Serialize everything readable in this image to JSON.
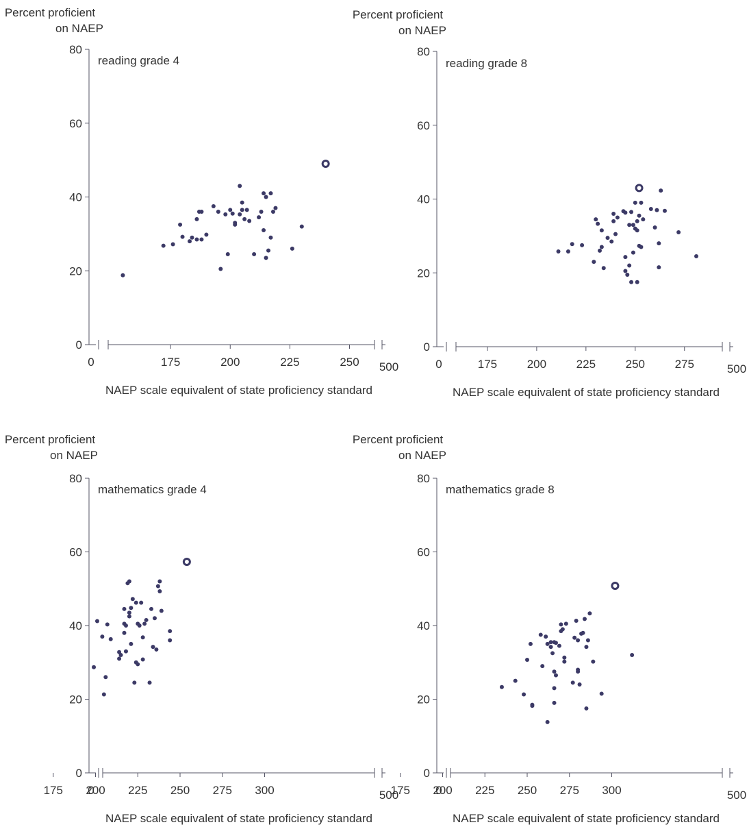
{
  "colors": {
    "point": "#3c3a66",
    "highlight": "#3c3a66",
    "axis": "#555566",
    "text": "#333333"
  },
  "chart_data": [
    {
      "type": "scatter",
      "title": "reading grade 4",
      "ylabel": [
        "Percent proficient",
        "on NAEP"
      ],
      "xlabel": "NAEP scale equivalent of state proficiency standard",
      "ylim": [
        0,
        80
      ],
      "yticks": [
        0,
        20,
        40,
        60,
        80
      ],
      "xrange": [
        150,
        250
      ],
      "xticks": [
        "175",
        "200",
        "225",
        "250"
      ],
      "x_zero_label": "0",
      "x_max_label": "500",
      "highlight": {
        "x": 240,
        "y": 49
      },
      "points": [
        [
          155,
          18.8
        ],
        [
          172,
          26.8
        ],
        [
          176,
          27.2
        ],
        [
          179,
          32.5
        ],
        [
          180,
          29.2
        ],
        [
          183,
          28
        ],
        [
          184,
          29
        ],
        [
          186,
          28.5
        ],
        [
          186,
          34
        ],
        [
          187,
          36
        ],
        [
          188,
          28.5
        ],
        [
          188,
          36
        ],
        [
          190,
          29.8
        ],
        [
          193,
          37.5
        ],
        [
          195,
          36
        ],
        [
          196,
          20.5
        ],
        [
          198,
          35.3
        ],
        [
          199,
          24.5
        ],
        [
          200,
          36.5
        ],
        [
          201,
          35.5
        ],
        [
          202,
          33
        ],
        [
          202,
          32.5
        ],
        [
          204,
          43
        ],
        [
          204,
          35.3
        ],
        [
          205,
          38.5
        ],
        [
          205,
          36.5
        ],
        [
          206,
          34
        ],
        [
          207,
          36.5
        ],
        [
          208,
          33.5
        ],
        [
          210,
          24.5
        ],
        [
          212,
          34.5
        ],
        [
          213,
          36
        ],
        [
          214,
          31
        ],
        [
          214,
          41
        ],
        [
          215,
          40
        ],
        [
          215,
          23.5
        ],
        [
          216,
          25.5
        ],
        [
          217,
          29
        ],
        [
          217,
          41
        ],
        [
          218,
          36
        ],
        [
          219,
          37
        ],
        [
          226,
          26
        ],
        [
          230,
          32
        ]
      ]
    },
    {
      "type": "scatter",
      "title": "reading grade 8",
      "ylabel": [
        "Percent proficient",
        "on NAEP"
      ],
      "xlabel": "NAEP scale equivalent of state proficiency standard",
      "ylim": [
        0,
        80
      ],
      "yticks": [
        0,
        20,
        40,
        60,
        80
      ],
      "xrange": [
        150,
        300
      ],
      "xticks": [
        "175",
        "200",
        "225",
        "250",
        "275"
      ],
      "x_zero_label": "0",
      "x_max_label": "500",
      "highlight": {
        "x": 252,
        "y": 43
      },
      "points": [
        [
          211,
          25.8
        ],
        [
          216,
          25.8
        ],
        [
          218,
          27.8
        ],
        [
          223,
          27.5
        ],
        [
          229,
          23
        ],
        [
          230,
          34.5
        ],
        [
          231,
          33.3
        ],
        [
          232,
          26
        ],
        [
          233,
          27
        ],
        [
          233,
          31.5
        ],
        [
          234,
          21.3
        ],
        [
          236,
          29.5
        ],
        [
          238,
          28.5
        ],
        [
          239,
          34
        ],
        [
          239,
          36
        ],
        [
          240,
          30.5
        ],
        [
          241,
          35
        ],
        [
          244,
          36.7
        ],
        [
          245,
          20.5
        ],
        [
          245,
          24.3
        ],
        [
          245,
          36.3
        ],
        [
          246,
          19.5
        ],
        [
          247,
          33
        ],
        [
          247,
          22
        ],
        [
          248,
          17.5
        ],
        [
          248,
          36.5
        ],
        [
          249,
          25.5
        ],
        [
          249,
          33
        ],
        [
          250,
          32
        ],
        [
          250,
          39
        ],
        [
          251,
          31.5
        ],
        [
          251,
          34
        ],
        [
          251,
          17.5
        ],
        [
          252,
          27.3
        ],
        [
          252,
          35.5
        ],
        [
          253,
          39
        ],
        [
          253,
          27
        ],
        [
          254,
          34.5
        ],
        [
          258,
          37.3
        ],
        [
          260,
          32.3
        ],
        [
          261,
          37
        ],
        [
          262,
          21.5
        ],
        [
          262,
          28
        ],
        [
          263,
          42.3
        ],
        [
          265,
          36.8
        ],
        [
          272,
          31
        ],
        [
          281,
          24.5
        ]
      ]
    },
    {
      "type": "scatter",
      "title": "mathematics grade 4",
      "ylabel": [
        "Percent proficient",
        "on NAEP"
      ],
      "xlabel": "NAEP scale equivalent of state proficiency standard",
      "ylim": [
        0,
        80
      ],
      "yticks": [
        0,
        20,
        40,
        60,
        80
      ],
      "xrange": [
        150,
        325
      ],
      "xticks": [
        "175",
        "200",
        "225",
        "250",
        "275",
        "300"
      ],
      "x_zero_label": "0",
      "x_max_label": "500",
      "highlight": {
        "x": 254,
        "y": 57.3
      },
      "points": [
        [
          199,
          28.7
        ],
        [
          201,
          41.2
        ],
        [
          204,
          37
        ],
        [
          205,
          21.3
        ],
        [
          206,
          26
        ],
        [
          207,
          40.3
        ],
        [
          209,
          36.3
        ],
        [
          214,
          32.8
        ],
        [
          214,
          31
        ],
        [
          215,
          32
        ],
        [
          217,
          44.5
        ],
        [
          217,
          40.5
        ],
        [
          217,
          38
        ],
        [
          218,
          40
        ],
        [
          218,
          33
        ],
        [
          219,
          51.5
        ],
        [
          220,
          52
        ],
        [
          220,
          43.5
        ],
        [
          220,
          42.5
        ],
        [
          221,
          35
        ],
        [
          221,
          44.8
        ],
        [
          222,
          47.2
        ],
        [
          223,
          24.5
        ],
        [
          224,
          30
        ],
        [
          224,
          46.2
        ],
        [
          225,
          40.5
        ],
        [
          225,
          29.5
        ],
        [
          226,
          40
        ],
        [
          227,
          46.2
        ],
        [
          228,
          36.8
        ],
        [
          228,
          30.8
        ],
        [
          229,
          40.5
        ],
        [
          230,
          41.5
        ],
        [
          232,
          24.5
        ],
        [
          233,
          44.5
        ],
        [
          234,
          34.2
        ],
        [
          235,
          42
        ],
        [
          236,
          33.5
        ],
        [
          237,
          50.7
        ],
        [
          238,
          52
        ],
        [
          238,
          49.3
        ],
        [
          239,
          44
        ],
        [
          244,
          36
        ],
        [
          244,
          38.5
        ]
      ]
    },
    {
      "type": "scatter",
      "title": "mathematics grade 8",
      "ylabel": [
        "Percent proficient",
        "on NAEP"
      ],
      "xlabel": "NAEP scale equivalent of state proficiency standard",
      "ylim": [
        0,
        80
      ],
      "yticks": [
        0,
        20,
        40,
        60,
        80
      ],
      "xrange": [
        150,
        325
      ],
      "xticks": [
        "175",
        "200",
        "225",
        "250",
        "275",
        "300"
      ],
      "x_zero_label": "0",
      "x_max_label": "500",
      "highlight": {
        "x": 302,
        "y": 50.8
      },
      "points": [
        [
          235,
          23.3
        ],
        [
          243,
          25
        ],
        [
          248,
          21.3
        ],
        [
          250,
          30.7
        ],
        [
          252,
          35
        ],
        [
          253,
          18.5
        ],
        [
          253,
          18.2
        ],
        [
          258,
          37.5
        ],
        [
          259,
          29
        ],
        [
          261,
          37
        ],
        [
          262,
          13.8
        ],
        [
          262,
          35
        ],
        [
          264,
          35.5
        ],
        [
          264,
          34.2
        ],
        [
          265,
          32.5
        ],
        [
          266,
          35.5
        ],
        [
          266,
          27.5
        ],
        [
          266,
          23
        ],
        [
          266,
          19
        ],
        [
          267,
          35.3
        ],
        [
          267,
          26.5
        ],
        [
          269,
          34.5
        ],
        [
          270,
          40.3
        ],
        [
          270,
          38.5
        ],
        [
          271,
          39
        ],
        [
          272,
          31.3
        ],
        [
          272,
          30.2
        ],
        [
          273,
          40.5
        ],
        [
          277,
          24.5
        ],
        [
          278,
          36.7
        ],
        [
          279,
          41.3
        ],
        [
          280,
          36
        ],
        [
          280,
          28
        ],
        [
          280,
          27.5
        ],
        [
          281,
          24
        ],
        [
          282,
          37.8
        ],
        [
          283,
          38
        ],
        [
          284,
          41.8
        ],
        [
          285,
          17.5
        ],
        [
          285,
          34.2
        ],
        [
          286,
          36
        ],
        [
          287,
          43.3
        ],
        [
          289,
          30.2
        ],
        [
          294,
          21.5
        ],
        [
          312,
          32
        ]
      ]
    }
  ]
}
